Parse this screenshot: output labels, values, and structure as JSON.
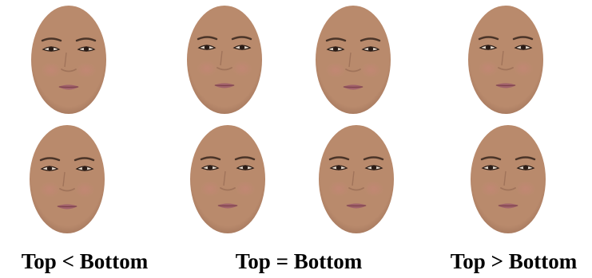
{
  "labels": {
    "left": "Top < Bottom",
    "middle": "Top = Bottom",
    "right": "Top > Bottom"
  },
  "colors": {
    "skin": "#b98a6c",
    "skin_shadow": "#a0735a",
    "cheek": "#c9857a",
    "lips": "#a0606a",
    "brow": "#4a3428",
    "eye": "#2a1c16",
    "text": "#000000"
  }
}
